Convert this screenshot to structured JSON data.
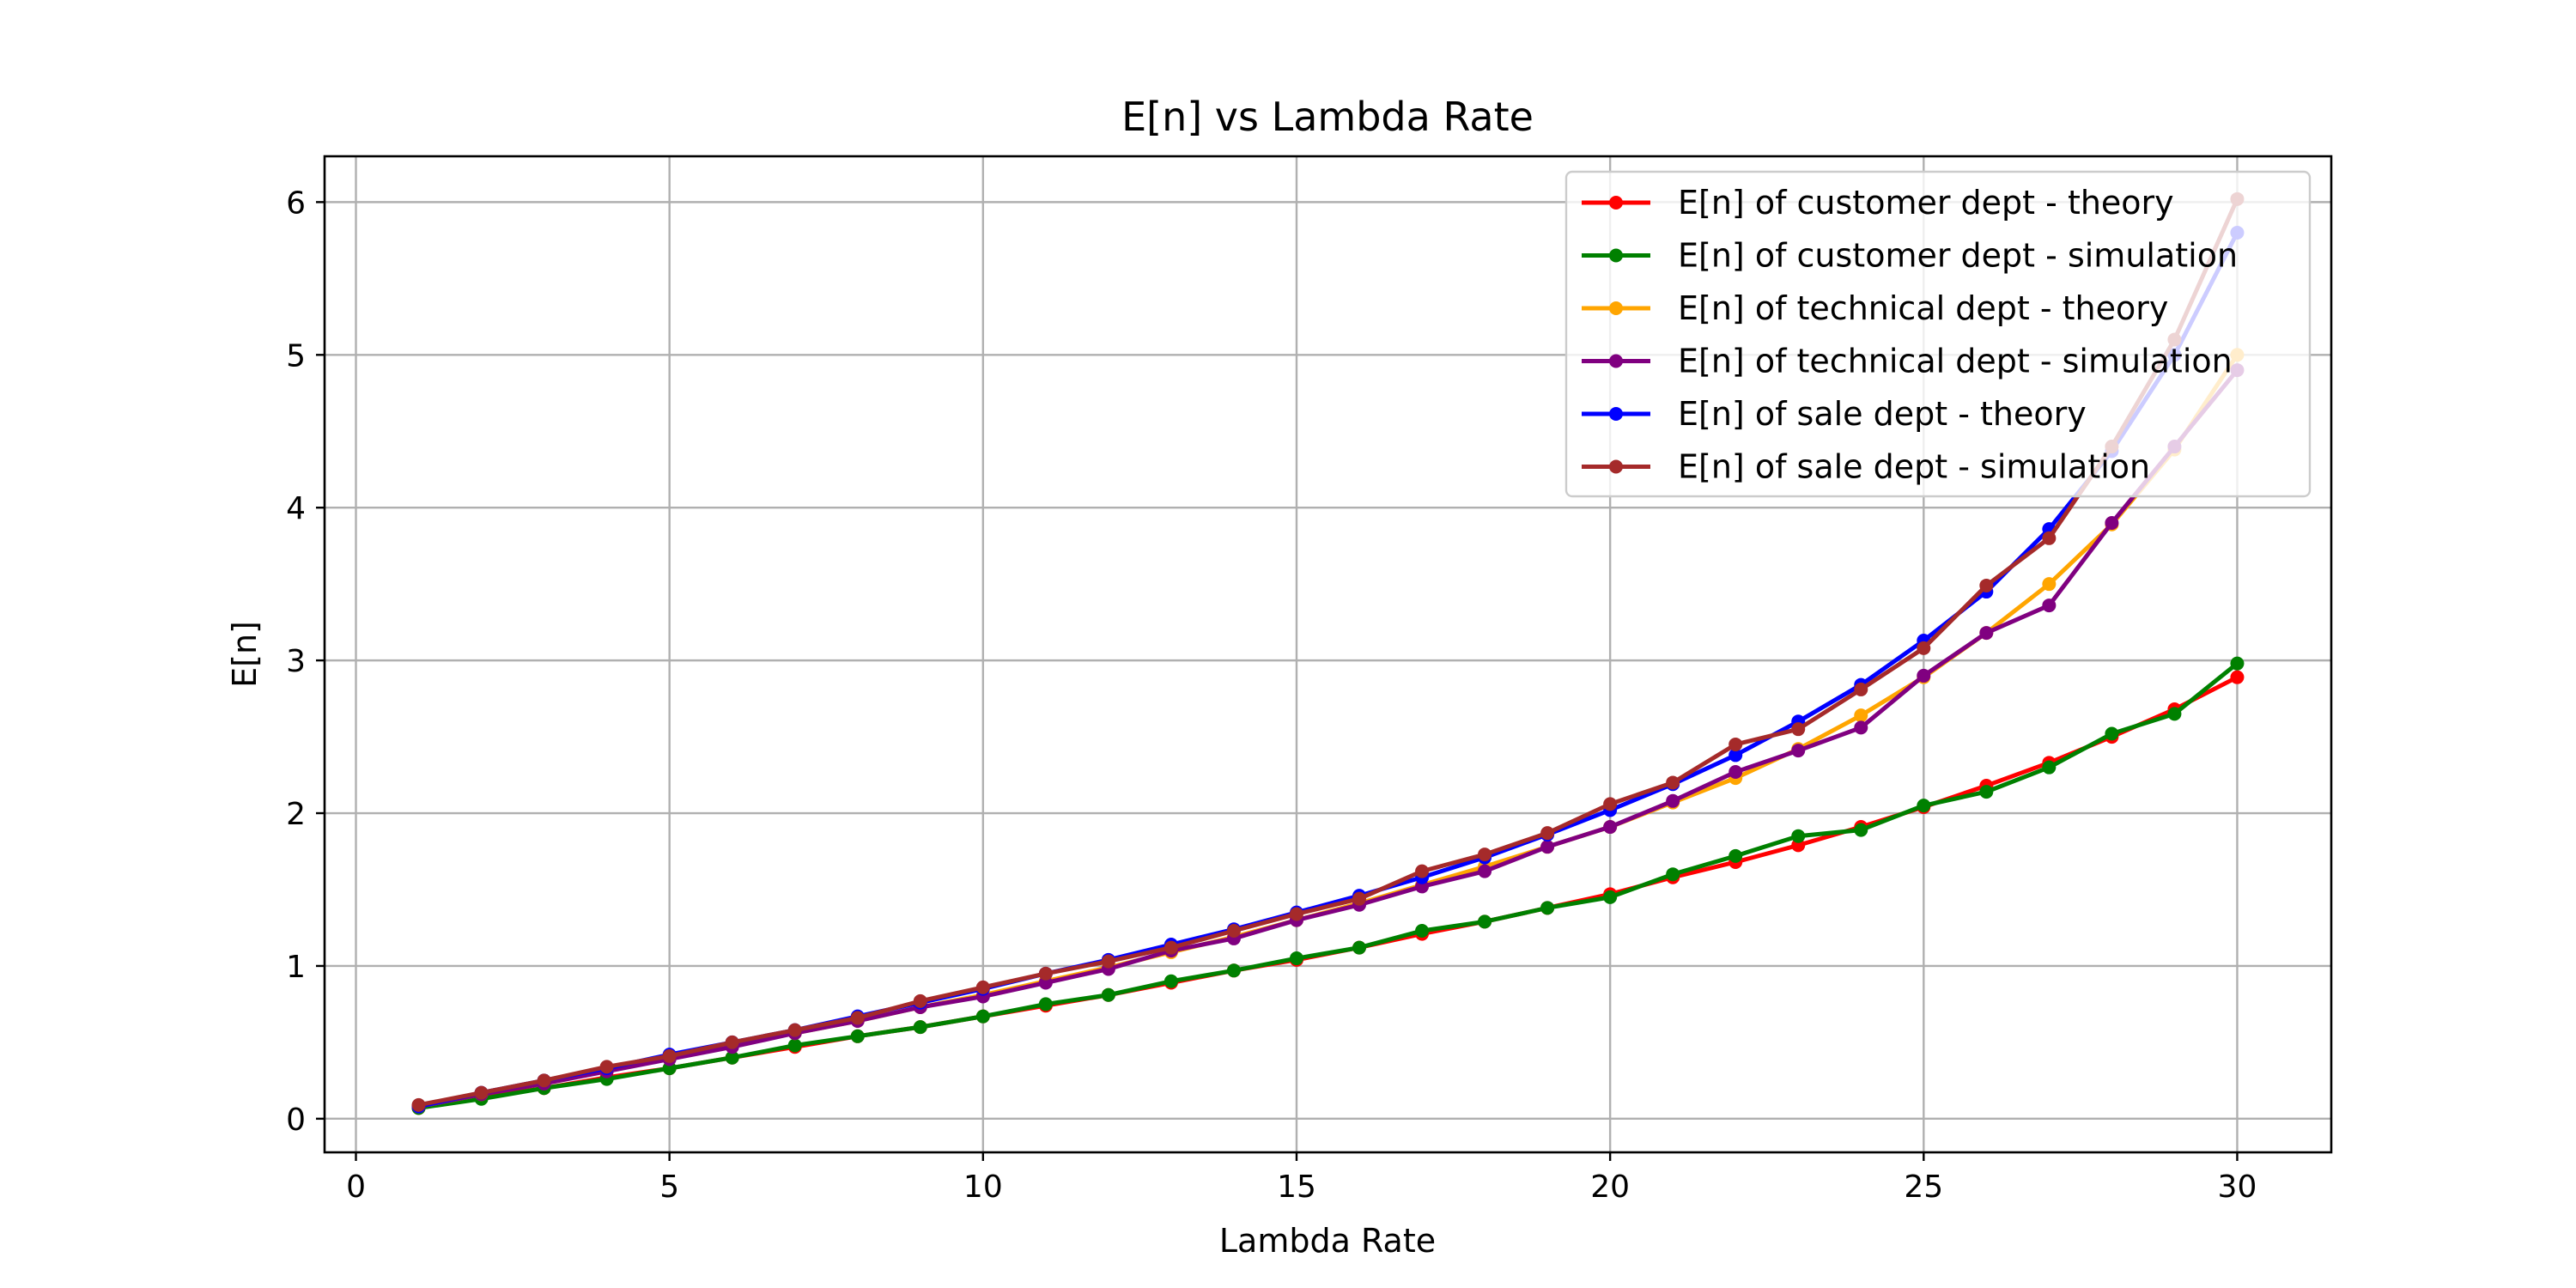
{
  "chart_data": {
    "type": "line",
    "title": "E[n] vs Lambda Rate",
    "xlabel": "Lambda Rate",
    "ylabel": "E[n]",
    "xlim": [
      -0.5,
      31.5
    ],
    "ylim": [
      -0.22,
      6.3
    ],
    "xticks": [
      0,
      5,
      10,
      15,
      20,
      25,
      30
    ],
    "yticks": [
      0,
      1,
      2,
      3,
      4,
      5,
      6
    ],
    "grid": true,
    "legend_position": "top-right",
    "x": [
      1,
      2,
      3,
      4,
      5,
      6,
      7,
      8,
      9,
      10,
      11,
      12,
      13,
      14,
      15,
      16,
      17,
      18,
      19,
      20,
      21,
      22,
      23,
      24,
      25,
      26,
      27,
      28,
      29,
      30
    ],
    "series": [
      {
        "name": "E[n] of customer dept - theory",
        "color": "#ff0000",
        "values": [
          0.07,
          0.14,
          0.2,
          0.27,
          0.33,
          0.4,
          0.47,
          0.54,
          0.6,
          0.67,
          0.74,
          0.81,
          0.89,
          0.97,
          1.04,
          1.12,
          1.21,
          1.29,
          1.38,
          1.47,
          1.58,
          1.68,
          1.79,
          1.91,
          2.04,
          2.18,
          2.33,
          2.5,
          2.68,
          2.89
        ]
      },
      {
        "name": "E[n] of customer dept - simulation",
        "color": "#008000",
        "values": [
          0.07,
          0.13,
          0.2,
          0.26,
          0.33,
          0.4,
          0.48,
          0.54,
          0.6,
          0.67,
          0.75,
          0.81,
          0.9,
          0.97,
          1.05,
          1.12,
          1.23,
          1.29,
          1.38,
          1.45,
          1.6,
          1.72,
          1.85,
          1.89,
          2.05,
          2.14,
          2.3,
          2.52,
          2.65,
          2.98
        ]
      },
      {
        "name": "E[n] of technical dept - theory",
        "color": "#ffa500",
        "values": [
          0.08,
          0.16,
          0.24,
          0.32,
          0.4,
          0.48,
          0.56,
          0.64,
          0.73,
          0.81,
          0.9,
          0.99,
          1.09,
          1.19,
          1.3,
          1.41,
          1.53,
          1.65,
          1.78,
          1.91,
          2.07,
          2.23,
          2.42,
          2.64,
          2.89,
          3.18,
          3.5,
          3.89,
          4.38,
          5.0
        ]
      },
      {
        "name": "E[n] of technical dept - simulation",
        "color": "#800080",
        "values": [
          0.08,
          0.16,
          0.23,
          0.31,
          0.39,
          0.47,
          0.56,
          0.64,
          0.73,
          0.8,
          0.89,
          0.98,
          1.1,
          1.18,
          1.3,
          1.4,
          1.52,
          1.62,
          1.78,
          1.91,
          2.08,
          2.27,
          2.41,
          2.56,
          2.9,
          3.18,
          3.36,
          3.9,
          4.4,
          4.9
        ]
      },
      {
        "name": "E[n] of sale dept - theory",
        "color": "#0000ff",
        "values": [
          0.08,
          0.17,
          0.25,
          0.33,
          0.42,
          0.5,
          0.58,
          0.67,
          0.76,
          0.85,
          0.95,
          1.04,
          1.14,
          1.24,
          1.35,
          1.46,
          1.58,
          1.71,
          1.86,
          2.02,
          2.19,
          2.38,
          2.6,
          2.84,
          3.13,
          3.45,
          3.86,
          4.37,
          5.0,
          5.8
        ]
      },
      {
        "name": "E[n] of sale dept - simulation",
        "color": "#a52a2a",
        "values": [
          0.09,
          0.17,
          0.25,
          0.34,
          0.41,
          0.5,
          0.58,
          0.66,
          0.77,
          0.86,
          0.95,
          1.03,
          1.12,
          1.23,
          1.34,
          1.44,
          1.62,
          1.73,
          1.87,
          2.06,
          2.2,
          2.45,
          2.55,
          2.81,
          3.08,
          3.49,
          3.8,
          4.4,
          5.1,
          6.02
        ]
      }
    ]
  }
}
